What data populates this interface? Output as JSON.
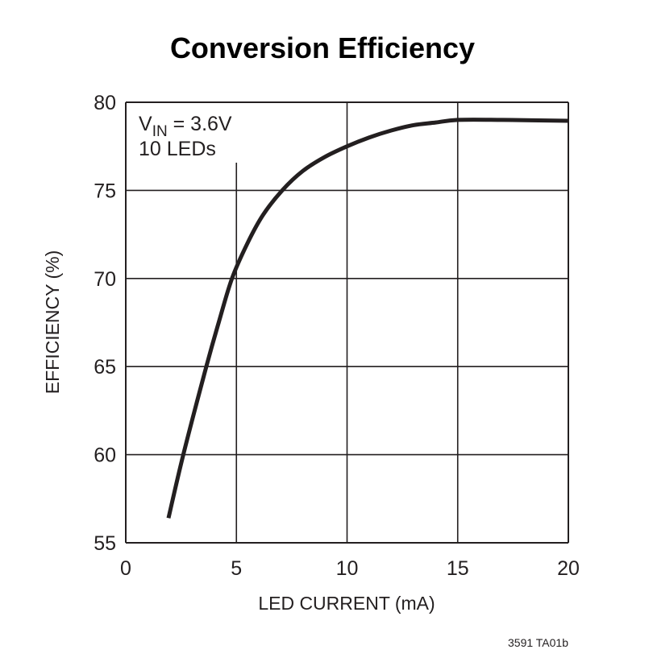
{
  "chart_data": {
    "type": "line",
    "title": "Conversion Efficiency",
    "xlabel": "LED CURRENT (mA)",
    "ylabel": "EFFICIENCY (%)",
    "xlim": [
      0,
      20
    ],
    "ylim": [
      55,
      80
    ],
    "xticks": [
      0,
      5,
      10,
      15,
      20
    ],
    "yticks": [
      55,
      60,
      65,
      70,
      75,
      80
    ],
    "grid": true,
    "annotation": {
      "line1_main": "V",
      "line1_sub": "IN",
      "line1_rest": " = 3.6V",
      "line2": "10 LEDs"
    },
    "footnote": "3591 TA01b",
    "series": [
      {
        "name": "Efficiency",
        "color": "#231f20",
        "x": [
          1.93,
          2.6,
          3.64,
          4.2,
          4.8,
          5.5,
          6.2,
          7.07,
          8,
          9,
          10,
          11,
          12,
          13,
          14,
          15,
          17,
          20
        ],
        "y": [
          56.4,
          60,
          65,
          67.5,
          70,
          72,
          73.6,
          75,
          76.1,
          76.9,
          77.5,
          78.0,
          78.4,
          78.7,
          78.85,
          79,
          79,
          78.95
        ]
      }
    ]
  }
}
